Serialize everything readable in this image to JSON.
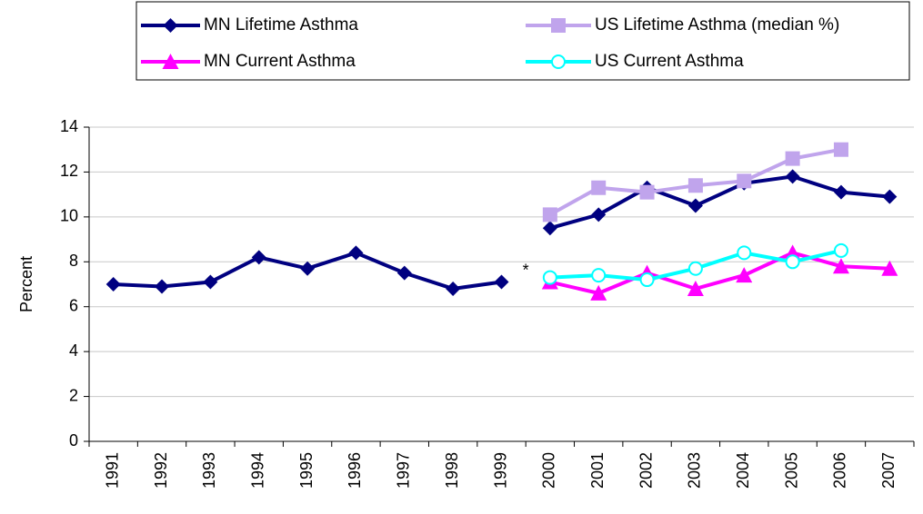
{
  "chart_data": {
    "type": "line",
    "y_label": "Percent",
    "categories": [
      "1991",
      "1992",
      "1993",
      "1994",
      "1995",
      "1996",
      "1997",
      "1998",
      "1999",
      "2000",
      "2001",
      "2002",
      "2003",
      "2004",
      "2005",
      "2006",
      "2007"
    ],
    "series": [
      {
        "name": "MN Lifetime Asthma",
        "color": "#000080",
        "marker": "diamond",
        "values": [
          7.0,
          6.9,
          7.1,
          8.2,
          7.7,
          8.4,
          7.5,
          6.8,
          7.1,
          9.5,
          10.1,
          11.3,
          10.5,
          11.5,
          11.8,
          11.1,
          10.9
        ]
      },
      {
        "name": "US Lifetime Asthma (median %)",
        "color": "#c0a4ec",
        "marker": "square",
        "values": [
          null,
          null,
          null,
          null,
          null,
          null,
          null,
          null,
          null,
          10.1,
          11.3,
          11.1,
          11.4,
          11.6,
          12.6,
          13.0,
          null
        ]
      },
      {
        "name": "MN Current Asthma",
        "color": "#ff00ff",
        "marker": "triangle",
        "values": [
          null,
          null,
          null,
          null,
          null,
          null,
          null,
          null,
          null,
          7.1,
          6.6,
          7.5,
          6.8,
          7.4,
          8.4,
          7.8,
          7.7
        ]
      },
      {
        "name": "US Current Asthma",
        "color": "#00ffff",
        "marker": "circle",
        "values": [
          null,
          null,
          null,
          null,
          null,
          null,
          null,
          null,
          null,
          7.3,
          7.4,
          7.2,
          7.7,
          8.4,
          8.0,
          8.5,
          null
        ]
      }
    ],
    "break_before": "2000",
    "annotation": "*",
    "ylim": [
      0,
      14
    ],
    "yticks": [
      0,
      2,
      4,
      6,
      8,
      10,
      12,
      14
    ],
    "grid": true
  }
}
